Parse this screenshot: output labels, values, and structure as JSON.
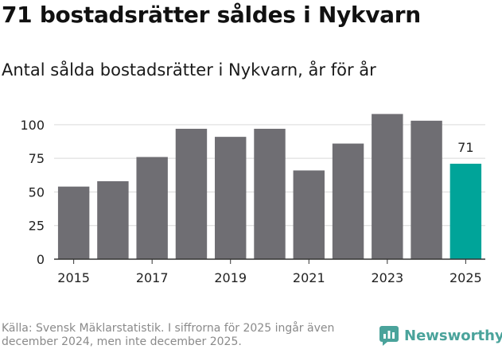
{
  "title": "71 bostadsrätter såldes i Nykvarn",
  "subtitle": "Antal sålda bostadsrätter i Nykvarn, år för år",
  "source": "Källa: Svensk Mäklarstatistik. I siffrorna för 2025 ingår även december 2024, men inte december 2025.",
  "brand": {
    "name": "Newsworthy",
    "icon": "newsworthy-logo-icon"
  },
  "colors": {
    "bar": "#6f6e73",
    "highlight": "#00a499",
    "grid": "#d9d9d9",
    "text": "#222222"
  },
  "chart_data": {
    "type": "bar",
    "x": [
      2015,
      2016,
      2017,
      2018,
      2019,
      2020,
      2021,
      2022,
      2023,
      2024,
      2025
    ],
    "values": [
      54,
      58,
      76,
      97,
      91,
      97,
      66,
      86,
      108,
      103,
      71
    ],
    "highlight_index": 10,
    "data_labels": [
      {
        "index": 10,
        "text": "71"
      }
    ],
    "x_ticks": [
      "2015",
      "2017",
      "2019",
      "2021",
      "2023",
      "2025"
    ],
    "y_ticks": [
      0,
      25,
      50,
      75,
      100
    ],
    "ylim": [
      0,
      110
    ],
    "grid": true,
    "xlabel": "",
    "ylabel": ""
  }
}
